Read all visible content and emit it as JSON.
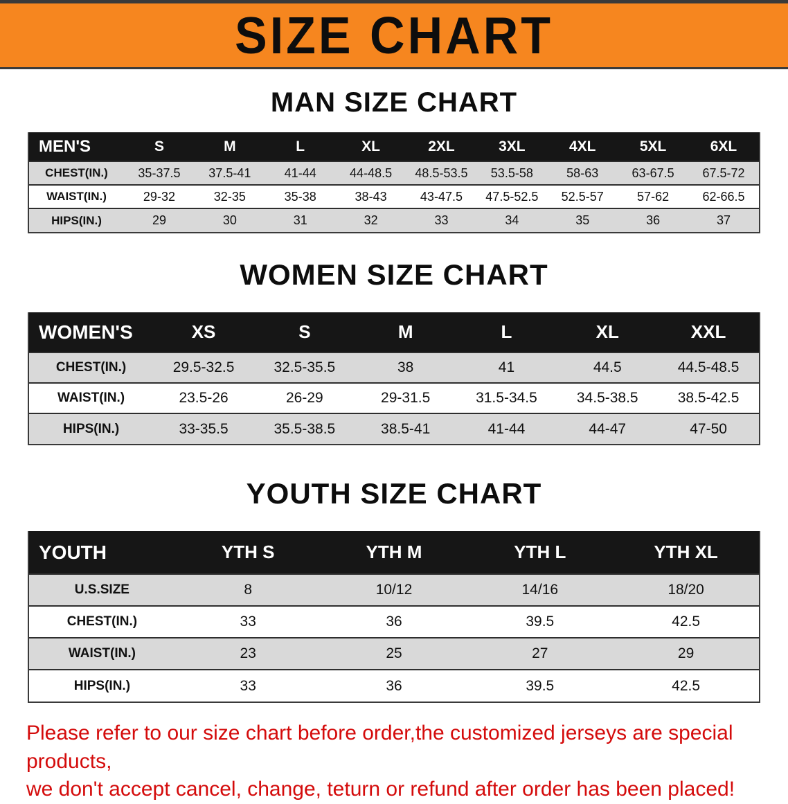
{
  "colors": {
    "banner_bg": "#F6861F",
    "header_bg": "#161616",
    "row_alt_bg": "#D9D9D9",
    "disclaimer_red": "#D40B0B",
    "text": "#111111"
  },
  "banner": {
    "title": "SIZE CHART"
  },
  "sections": [
    {
      "heading": "MAN SIZE CHART",
      "table": {
        "header_label": "MEN'S",
        "columns": [
          "S",
          "M",
          "L",
          "XL",
          "2XL",
          "3XL",
          "4XL",
          "5XL",
          "6XL"
        ],
        "rows": [
          {
            "label": "CHEST(IN.)",
            "values": [
              "35-37.5",
              "37.5-41",
              "41-44",
              "44-48.5",
              "48.5-53.5",
              "53.5-58",
              "58-63",
              "63-67.5",
              "67.5-72"
            ]
          },
          {
            "label": "WAIST(IN.)",
            "values": [
              "29-32",
              "32-35",
              "35-38",
              "38-43",
              "43-47.5",
              "47.5-52.5",
              "52.5-57",
              "57-62",
              "62-66.5"
            ]
          },
          {
            "label": "HIPS(IN.)",
            "values": [
              "29",
              "30",
              "31",
              "32",
              "33",
              "34",
              "35",
              "36",
              "37"
            ]
          }
        ]
      }
    },
    {
      "heading": "WOMEN SIZE CHART",
      "table": {
        "header_label": "WOMEN'S",
        "columns": [
          "XS",
          "S",
          "M",
          "L",
          "XL",
          "XXL"
        ],
        "rows": [
          {
            "label": "CHEST(IN.)",
            "values": [
              "29.5-32.5",
              "32.5-35.5",
              "38",
              "41",
              "44.5",
              "44.5-48.5"
            ]
          },
          {
            "label": "WAIST(IN.)",
            "values": [
              "23.5-26",
              "26-29",
              "29-31.5",
              "31.5-34.5",
              "34.5-38.5",
              "38.5-42.5"
            ]
          },
          {
            "label": "HIPS(IN.)",
            "values": [
              "33-35.5",
              "35.5-38.5",
              "38.5-41",
              "41-44",
              "44-47",
              "47-50"
            ]
          }
        ]
      }
    },
    {
      "heading": "YOUTH SIZE CHART",
      "table": {
        "header_label": "YOUTH",
        "columns": [
          "YTH S",
          "YTH M",
          "YTH L",
          "YTH XL"
        ],
        "rows": [
          {
            "label": "U.S.SIZE",
            "values": [
              "8",
              "10/12",
              "14/16",
              "18/20"
            ]
          },
          {
            "label": "CHEST(IN.)",
            "values": [
              "33",
              "36",
              "39.5",
              "42.5"
            ]
          },
          {
            "label": "WAIST(IN.)",
            "values": [
              "23",
              "25",
              "27",
              "29"
            ]
          },
          {
            "label": "HIPS(IN.)",
            "values": [
              "33",
              "36",
              "39.5",
              "42.5"
            ]
          }
        ]
      }
    }
  ],
  "disclaimer": {
    "line1": "Please refer to our size chart before order,the customized jerseys are special products,",
    "line2": "we don't accept cancel, change, teturn or refund after order has been placed!"
  }
}
